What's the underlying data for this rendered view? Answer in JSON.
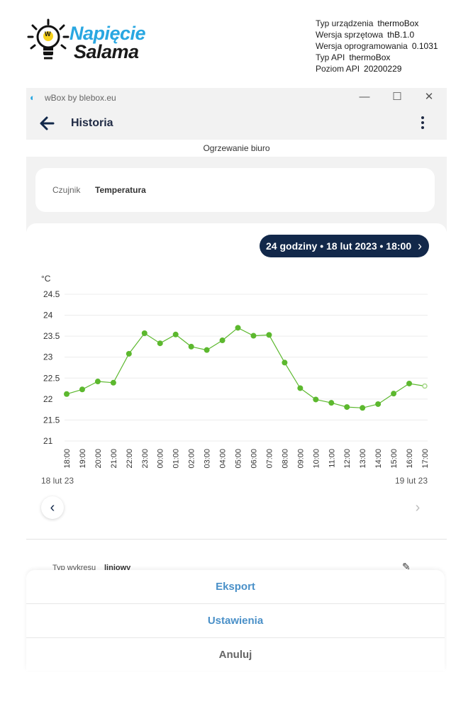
{
  "logo": {
    "line1": "Napięcie",
    "line2": "Salama",
    "badge": "W"
  },
  "device_info": [
    {
      "label": "Typ urządzenia",
      "value": "thermoBox"
    },
    {
      "label": "Wersja sprzętowa",
      "value": "thB.1.0"
    },
    {
      "label": "Wersja oprogramowania",
      "value": "0.1031"
    },
    {
      "label": "Typ API",
      "value": "thermoBox"
    },
    {
      "label": "Poziom API",
      "value": "20200229"
    }
  ],
  "window": {
    "title": "wBox by blebox.eu",
    "controls": {
      "minimize": "—",
      "maximize": "☐",
      "close": "✕"
    }
  },
  "appbar": {
    "title": "Historia"
  },
  "device_name": "Ogrzewanie biuro",
  "sensor": {
    "label": "Czujnik",
    "value": "Temperatura"
  },
  "range": {
    "label": "24 godziny • 18 lut 2023 • 18:00",
    "chevron": "›"
  },
  "nav": {
    "prev": "‹",
    "next": "›"
  },
  "chart_data": {
    "type": "line",
    "unit_label": "°C",
    "ylim": [
      21,
      24.5
    ],
    "yticks": [
      "24.5",
      "24",
      "23.5",
      "23",
      "22.5",
      "22",
      "21.5",
      "21"
    ],
    "x": [
      "18:00",
      "19:00",
      "20:00",
      "21:00",
      "22:00",
      "23:00",
      "00:00",
      "01:00",
      "02:00",
      "03:00",
      "04:00",
      "05:00",
      "06:00",
      "07:00",
      "08:00",
      "09:00",
      "10:00",
      "11:00",
      "12:00",
      "13:00",
      "14:00",
      "15:00",
      "16:00",
      "17:00"
    ],
    "values": [
      22.12,
      22.23,
      22.42,
      22.39,
      23.08,
      23.57,
      23.33,
      23.54,
      23.25,
      23.17,
      23.4,
      23.7,
      23.51,
      23.53,
      22.87,
      22.26,
      21.99,
      21.91,
      21.81,
      21.79,
      21.88,
      22.13,
      22.37,
      22.31
    ],
    "start_date": "18 lut 23",
    "end_date": "19 lut 23",
    "grid": true,
    "colors": {
      "line": "#5cb82e",
      "marker": "#5cb82e",
      "last_marker": "#a6d88a"
    }
  },
  "chart_type": {
    "label": "Typ wykresu",
    "value": "liniowy"
  },
  "sheet": {
    "export": "Eksport",
    "settings": "Ustawienia",
    "cancel": "Anuluj"
  }
}
